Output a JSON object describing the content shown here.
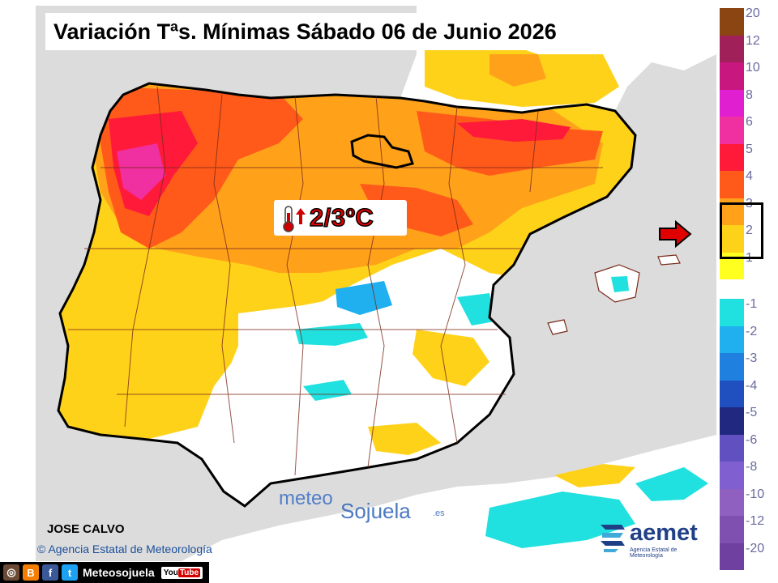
{
  "title": "Variación Tªs. Mínimas Sábado 06 de Junio 2026",
  "callout": {
    "value": "2/3ºC",
    "icon": "thermometer-up-icon"
  },
  "author": "JOSE CALVO",
  "copyright": "Agencia Estatal de Meteorología",
  "watermark": {
    "part1": "meteo",
    "part2": "Sojuela",
    "part3": ".es"
  },
  "logo": {
    "word": "aemet",
    "subtitle": "Agencia Estatal de Meteorología"
  },
  "social": {
    "handle": "Meteosojuela",
    "youtube": "You",
    "youtube_tube": "Tube",
    "icons": [
      "instagram-icon",
      "blogger-icon",
      "facebook-icon",
      "twitter-icon"
    ]
  },
  "legend": {
    "highlight": "2 to 3",
    "items": [
      {
        "label": "20",
        "color": "#8b4513"
      },
      {
        "label": "12",
        "color": "#a0205a"
      },
      {
        "label": "10",
        "color": "#c8177e"
      },
      {
        "label": "8",
        "color": "#e020d0"
      },
      {
        "label": "6",
        "color": "#f02fa0"
      },
      {
        "label": "5",
        "color": "#ff1a3a"
      },
      {
        "label": "4",
        "color": "#ff5a1a"
      },
      {
        "label": "3",
        "color": "#ffa21a"
      },
      {
        "label": "2",
        "color": "#ffd21a"
      },
      {
        "label": "1",
        "color": "#ffff20"
      },
      {
        "label": "-1",
        "color": "#20e0e0"
      },
      {
        "label": "-2",
        "color": "#20b0f0"
      },
      {
        "label": "-3",
        "color": "#2080e0"
      },
      {
        "label": "-4",
        "color": "#2050c0"
      },
      {
        "label": "-5",
        "color": "#202880"
      },
      {
        "label": "-6",
        "color": "#6050c0"
      },
      {
        "label": "-8",
        "color": "#8060d0"
      },
      {
        "label": "-10",
        "color": "#9060c0"
      },
      {
        "label": "-12",
        "color": "#8050b0"
      },
      {
        "label": "-20",
        "color": "#7040a0"
      }
    ]
  },
  "colors": {
    "land_default": "#ffffff",
    "sea": "#dcdcdc",
    "warm_light": "#ffd21a",
    "warm": "#ffa21a",
    "hot": "#ff5a1a",
    "very_hot": "#ff1a3a",
    "cool": "#20e0e0"
  }
}
